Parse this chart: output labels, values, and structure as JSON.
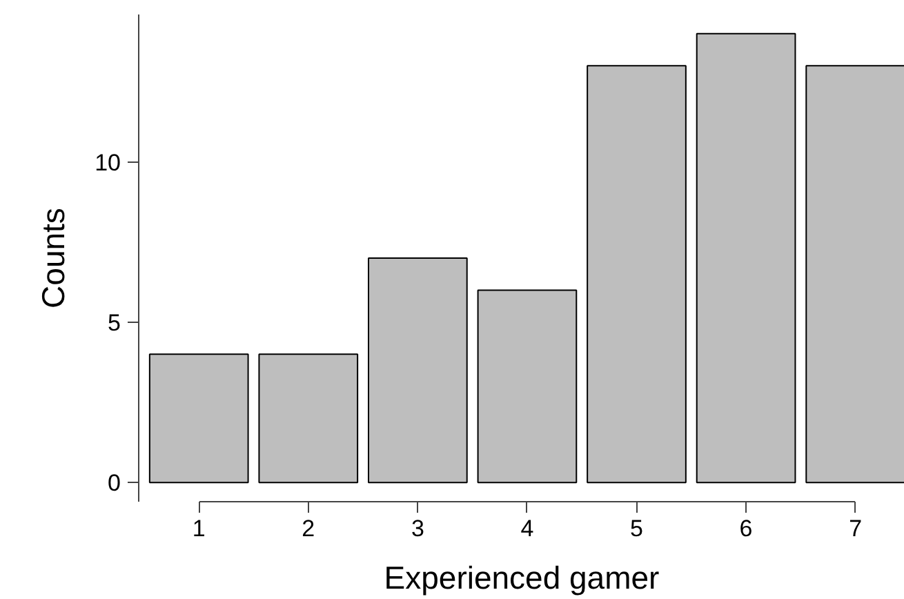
{
  "chart_data": {
    "type": "bar",
    "xlabel": "Experienced gamer",
    "ylabel": "Counts",
    "categories": [
      "1",
      "2",
      "3",
      "4",
      "5",
      "6",
      "7"
    ],
    "values": [
      4,
      4,
      7,
      6,
      13,
      14,
      13
    ],
    "color": "#bebebe",
    "ylim": [
      -0.6,
      14.6
    ],
    "yticks": [
      0,
      5,
      10
    ],
    "grid": false
  }
}
